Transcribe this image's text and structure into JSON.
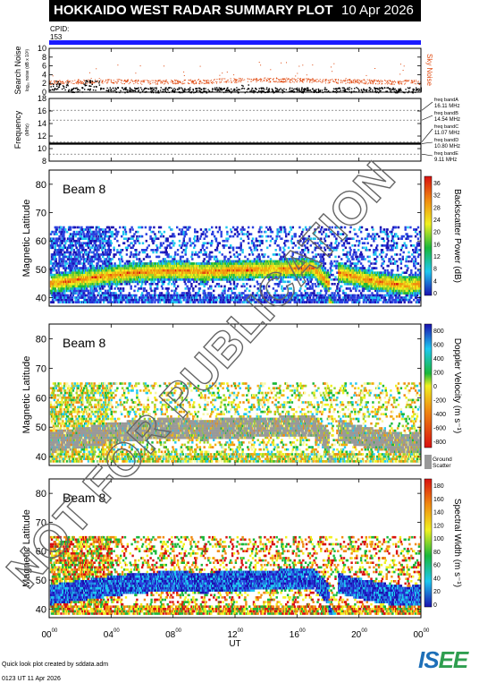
{
  "header": {
    "title": "HOKKAIDO WEST RADAR SUMMARY PLOT",
    "date": "10 Apr 2026",
    "cpid_label": "CPID:",
    "cpid_value": "153"
  },
  "colors": {
    "cpid_bar": "#1a1aff",
    "noise_dots": "#e04a10",
    "ground_scatter": "#999999"
  },
  "chart_data": [
    {
      "type": "scatter",
      "title": "",
      "ylabel": "Search Noise",
      "ysublabel": "log₁₀ noise (dB x 10³)",
      "right_label": "Sky Noise",
      "ylim": [
        0,
        10
      ],
      "yticks": [
        0,
        2,
        4,
        6,
        8,
        10
      ],
      "series": [
        {
          "name": "Sky Noise",
          "x": [
            0,
            2,
            4,
            6,
            8,
            10,
            12,
            14,
            16,
            18,
            20,
            22,
            24
          ],
          "values": [
            2.3,
            2.5,
            2.6,
            2.4,
            2.4,
            2.5,
            2.8,
            2.9,
            2.8,
            2.6,
            2.5,
            2.4,
            2.3
          ]
        }
      ]
    },
    {
      "type": "line",
      "title": "",
      "ylabel": "Frequency",
      "ysublabel": "(MHz)",
      "ylim": [
        8,
        18
      ],
      "yticks": [
        8,
        10,
        12,
        14,
        16,
        18
      ],
      "bands": [
        {
          "label": "freq bandA",
          "value": "16.11 MHz",
          "mhz": 16.11
        },
        {
          "label": "freq bandB",
          "value": "14.54 MHz",
          "mhz": 14.54
        },
        {
          "label": "freq bandC",
          "value": "11.07 MHz",
          "mhz": 11.07
        },
        {
          "label": "freq bandD",
          "value": "10.80 MHz",
          "mhz": 10.8
        },
        {
          "label": "freq bandE",
          "value": "9.11 MHz",
          "mhz": 9.11
        }
      ],
      "operating_mhz": 10.8
    },
    {
      "type": "heatmap",
      "panel": "Beam 8",
      "ylabel": "Magnetic Latitude",
      "ylim": [
        37,
        85
      ],
      "yticks": [
        40,
        50,
        60,
        70,
        80
      ],
      "colorbar_label": "Backscatter Power (dB)",
      "colorbar_ticks": [
        "0",
        "4",
        "8",
        "12",
        "16",
        "20",
        "24",
        "28",
        "32",
        "36"
      ]
    },
    {
      "type": "heatmap",
      "panel": "Beam 8",
      "ylabel": "Magnetic Latitude",
      "ylim": [
        37,
        85
      ],
      "yticks": [
        40,
        50,
        60,
        70,
        80
      ],
      "colorbar_label": "Doppler Velocity (m s⁻¹)",
      "colorbar_ticks": [
        "800",
        "600",
        "400",
        "200",
        "0",
        "-200",
        "-400",
        "-600",
        "-800"
      ],
      "ground_scatter_label": [
        "Ground",
        "Scatter"
      ]
    },
    {
      "type": "heatmap",
      "panel": "Beam 8",
      "ylabel": "Magnetic Latitude",
      "ylim": [
        37,
        85
      ],
      "yticks": [
        40,
        50,
        60,
        70,
        80
      ],
      "colorbar_label": "Spectral Width (m s⁻¹)",
      "colorbar_ticks": [
        "0",
        "20",
        "40",
        "60",
        "80",
        "100",
        "120",
        "140",
        "160",
        "180"
      ]
    }
  ],
  "xaxis": {
    "label": "UT",
    "ticks": [
      "00",
      "04",
      "08",
      "12",
      "16",
      "20",
      "00"
    ],
    "tick_hours": [
      0,
      4,
      8,
      12,
      16,
      20,
      24
    ],
    "sup": "00"
  },
  "watermark": "NOT FOR PUBLICATION",
  "footer": {
    "credit": "Quick look plot created by sddata.adm",
    "timestamp": "0123 UT 11 Apr 2026",
    "logo_a": "IS",
    "logo_b": "EE"
  }
}
